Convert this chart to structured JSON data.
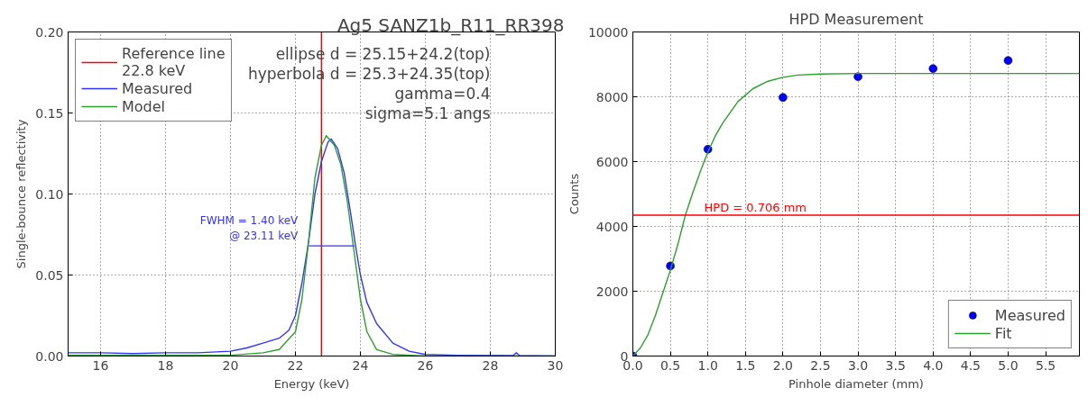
{
  "chart_data": [
    {
      "type": "line",
      "title": "Ag5 SANZ1b_R11_RR398",
      "xlabel": "Energy (keV)",
      "ylabel": "Single-bounce reflectivity",
      "xlim": [
        15,
        30
      ],
      "ylim": [
        0,
        0.2
      ],
      "xticks": [
        16,
        18,
        20,
        22,
        24,
        26,
        28,
        30
      ],
      "yticks": [
        {
          "value": 0,
          "label": "0.00"
        },
        {
          "value": 0.05,
          "label": "0.05"
        },
        {
          "value": 0.1,
          "label": "0.10"
        },
        {
          "value": 0.15,
          "label": "0.15"
        },
        {
          "value": 0.2,
          "label": "0.20"
        }
      ],
      "grid": true,
      "legend": "top left",
      "marker": "none",
      "line_style": "solid",
      "annotations": [
        "ellipse d = 25.15+24.2(top)",
        "hyperbola d = 25.3+24.35(top)",
        "gamma=0.4",
        "sigma=5.1 angs",
        {
          "text": "FWHM = 1.40 keV\n@ 23.11 keV",
          "x": 22.41,
          "y": 0.068
        }
      ],
      "series": [
        {
          "name": "Reference line\n22.8 keV",
          "color": "#ff0000",
          "x": [
            22.8,
            22.8
          ],
          "values": [
            0,
            0.2
          ]
        },
        {
          "name": "Measured",
          "color": "#3333ff",
          "x": [
            15,
            16,
            17,
            18,
            19,
            20,
            20.5,
            21,
            21.5,
            21.8,
            22,
            22.2,
            22.4,
            22.6,
            22.8,
            23.0,
            23.1,
            23.3,
            23.5,
            23.7,
            23.85,
            24.0,
            24.2,
            24.5,
            25.0,
            25.5,
            26,
            27,
            28.7,
            28.8,
            28.9,
            30
          ],
          "values": [
            0.002,
            0.002,
            0.0015,
            0.002,
            0.002,
            0.003,
            0.005,
            0.008,
            0.011,
            0.016,
            0.025,
            0.045,
            0.07,
            0.1,
            0.12,
            0.132,
            0.134,
            0.128,
            0.113,
            0.088,
            0.068,
            0.05,
            0.033,
            0.02,
            0.008,
            0.003,
            0.001,
            0.0005,
            0.0003,
            0.002,
            0.0003,
            0
          ]
        },
        {
          "name": "Model",
          "color": "#2ca02c",
          "x": [
            15,
            20,
            21,
            21.5,
            22,
            22.2,
            22.4,
            22.6,
            22.8,
            22.95,
            23.2,
            23.4,
            23.6,
            23.8,
            24,
            24.2,
            24.5,
            25,
            26,
            30
          ],
          "values": [
            0.0005,
            0.0005,
            0.002,
            0.004,
            0.015,
            0.035,
            0.07,
            0.11,
            0.13,
            0.136,
            0.13,
            0.118,
            0.095,
            0.065,
            0.035,
            0.015,
            0.004,
            0.001,
            0,
            0
          ]
        },
        {
          "color": "#3333ff",
          "x": [
            22.41,
            23.81
          ],
          "values": [
            0.068,
            0.068
          ]
        }
      ]
    },
    {
      "type": "scatter",
      "title": "HPD Measurement",
      "xlabel": "Pinhole diameter (mm)",
      "ylabel": "Counts",
      "xlim": [
        0,
        5.95
      ],
      "ylim": [
        0,
        10000
      ],
      "xticks": [
        {
          "value": 0,
          "label": "0.0"
        },
        0.5,
        {
          "value": 1,
          "label": "1.0"
        },
        1.5,
        {
          "value": 2,
          "label": "2.0"
        },
        2.5,
        {
          "value": 3,
          "label": "3.0"
        },
        3.5,
        {
          "value": 4,
          "label": "4.0"
        },
        4.5,
        {
          "value": 5,
          "label": "5.0"
        },
        5.5
      ],
      "yticks": [
        0,
        2000,
        4000,
        6000,
        8000,
        10000
      ],
      "grid": true,
      "legend": "bottom right",
      "ref_lines": [
        {
          "axis": "y",
          "value": 4350,
          "color": "#ff0000"
        }
      ],
      "annotations": [
        {
          "text": "HPD = 0.706 mm",
          "x": 0.95,
          "y": 4350
        }
      ],
      "series": [
        {
          "name": "Measured",
          "color": "#0000ff",
          "marker": "circle",
          "x": [
            0,
            0.5,
            1,
            2,
            3,
            4,
            5
          ],
          "values": [
            0,
            2780,
            6380,
            7980,
            8620,
            8870,
            9120
          ]
        },
        {
          "name": "Fit",
          "type": "line",
          "color": "#2ca02c",
          "marker": "none",
          "x": [
            0,
            0.1,
            0.2,
            0.3,
            0.4,
            0.5,
            0.6,
            0.7,
            0.8,
            0.9,
            1.0,
            1.1,
            1.2,
            1.4,
            1.6,
            1.8,
            2.0,
            2.2,
            2.5,
            3,
            5.95
          ],
          "values": [
            0,
            250,
            650,
            1250,
            1950,
            2650,
            3450,
            4350,
            5050,
            5700,
            6300,
            6800,
            7200,
            7850,
            8250,
            8480,
            8600,
            8670,
            8700,
            8720,
            8720
          ]
        }
      ]
    }
  ]
}
